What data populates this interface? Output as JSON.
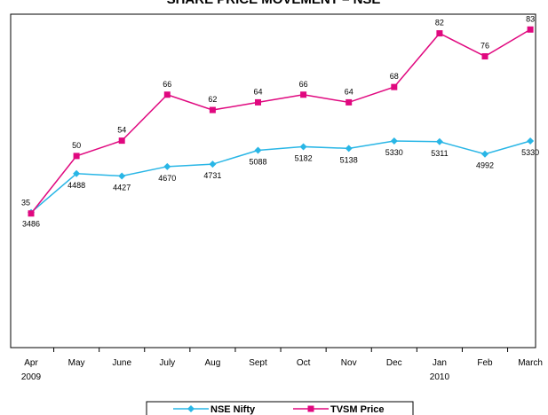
{
  "chart_data": {
    "type": "line",
    "title": "SHARE PRICE MOVEMENT – NSE",
    "categories": [
      "Apr\n2009",
      "May",
      "June",
      "July",
      "Aug",
      "Sept",
      "Oct",
      "Nov",
      "Dec",
      "Jan\n2010",
      "Feb",
      "March"
    ],
    "series": [
      {
        "name": "NSE Nifty",
        "color": "#29b6e6",
        "marker": "diamond",
        "values": [
          3486,
          4488,
          4427,
          4670,
          4731,
          5088,
          5182,
          5138,
          5330,
          5311,
          4992,
          5330
        ]
      },
      {
        "name": "TVSM Price",
        "color": "#e0087f",
        "marker": "square",
        "axis": "y2",
        "values": [
          35,
          50,
          54,
          66,
          62,
          64,
          66,
          64,
          68,
          82,
          76,
          83
        ]
      }
    ],
    "ylim": [
      0,
      8600
    ],
    "y2lim": [
      0,
      87
    ],
    "legend": "bottom"
  }
}
